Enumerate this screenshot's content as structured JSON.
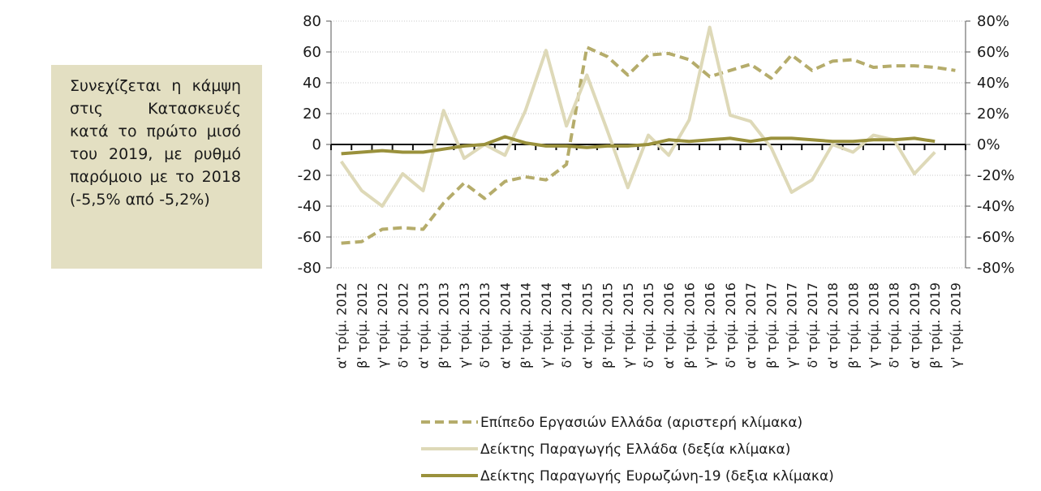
{
  "annotation": "Συνεχίζεται η κάμψη στις Κατασκευές κατά το πρώτο μισό του 2019, με ρυθμό παρόμοιο με το 2018 (-5,5% από -5,2%)",
  "chart_data": {
    "type": "line",
    "categories": [
      "α' τρίμ. 2012",
      "β' τρίμ. 2012",
      "γ' τρίμ. 2012",
      "δ' τρίμ. 2012",
      "α' τρίμ. 2013",
      "β' τρίμ. 2013",
      "γ' τρίμ. 2013",
      "δ' τρίμ. 2013",
      "α' τρίμ. 2014",
      "β' τρίμ. 2014",
      "γ' τρίμ. 2014",
      "δ' τρίμ. 2014",
      "α' τρίμ. 2015",
      "β' τρίμ. 2015",
      "γ' τρίμ. 2015",
      "δ' τρίμ. 2015",
      "α' τρίμ. 2016",
      "β' τρίμ. 2016",
      "γ' τρίμ. 2016",
      "δ' τρίμ. 2016",
      "α' τρίμ. 2017",
      "β' τρίμ. 2017",
      "γ' τρίμ. 2017",
      "δ' τρίμ. 2017",
      "α' τρίμ. 2018",
      "β' τρίμ. 2018",
      "γ' τρίμ. 2018",
      "δ' τρίμ. 2018",
      "α' τρίμ. 2019",
      "β' τρίμ. 2019",
      "γ' τρίμ. 2019"
    ],
    "y_left": {
      "ylim": [
        -80,
        80
      ],
      "ticks": [
        "80",
        "60",
        "40",
        "20",
        "0",
        "-20",
        "-40",
        "-60",
        "-80"
      ]
    },
    "y_right": {
      "ylim": [
        -0.8,
        0.8
      ],
      "ticks": [
        "80%",
        "60%",
        "40%",
        "20%",
        "0%",
        "-20%",
        "-40%",
        "-60%",
        "-80%"
      ]
    },
    "series": [
      {
        "name": "Επίπεδο Εργασιών Ελλάδα (αριστερή κλίμακα)",
        "axis": "left",
        "style": "dashed",
        "color": "#b5ac6b",
        "values": [
          -64,
          -63,
          -55,
          -54,
          -55,
          -38,
          -25,
          -35,
          -24,
          -21,
          -23,
          -13,
          63,
          57,
          45,
          58,
          59,
          55,
          44,
          48,
          52,
          43,
          58,
          48,
          54,
          55,
          50,
          51,
          51,
          50,
          48
        ]
      },
      {
        "name": "Δείκτης Παραγωγής Ελλάδα (δεξία κλίμακα)",
        "axis": "right",
        "style": "solid",
        "color": "#ded9b8",
        "values": [
          -0.11,
          -0.3,
          -0.4,
          -0.19,
          -0.3,
          0.22,
          -0.09,
          0.0,
          -0.07,
          0.22,
          0.61,
          0.12,
          0.45,
          0.09,
          -0.28,
          0.06,
          -0.07,
          0.16,
          0.76,
          0.19,
          0.15,
          -0.02,
          -0.31,
          -0.23,
          0.0,
          -0.05,
          0.06,
          0.03,
          -0.19,
          -0.05,
          null
        ]
      },
      {
        "name": "Δείκτης Παραγωγής Ευρωζώνη-19 (δεξια κλίμακα)",
        "axis": "right",
        "style": "solid",
        "color": "#9a913c",
        "values": [
          -0.06,
          -0.05,
          -0.04,
          -0.05,
          -0.05,
          -0.03,
          -0.01,
          0.0,
          0.05,
          0.01,
          -0.01,
          -0.01,
          -0.02,
          -0.01,
          -0.01,
          0.0,
          0.03,
          0.02,
          0.03,
          0.04,
          0.02,
          0.04,
          0.04,
          0.03,
          0.02,
          0.02,
          0.03,
          0.03,
          0.04,
          0.02,
          null
        ]
      }
    ],
    "grid": "horizontal",
    "legend_position": "bottom"
  }
}
